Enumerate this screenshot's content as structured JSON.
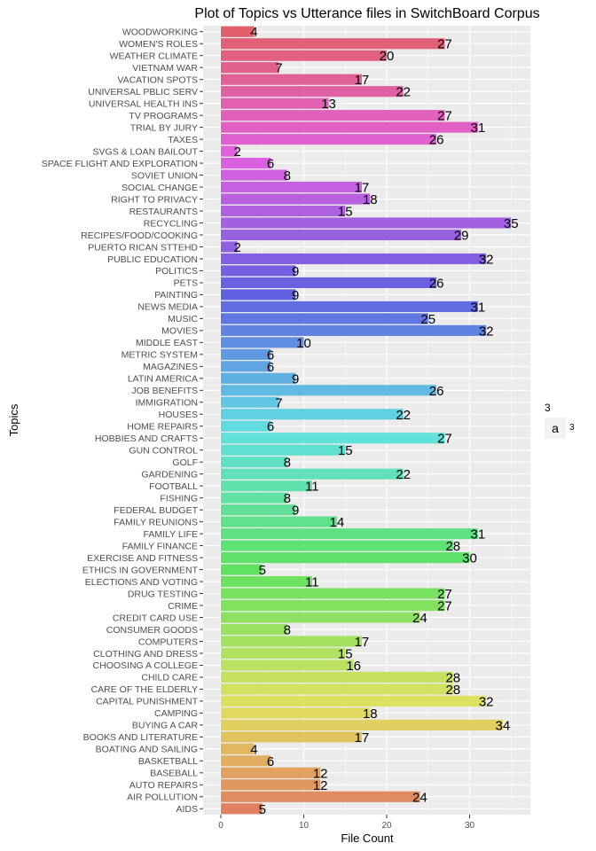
{
  "chart_data": {
    "type": "bar",
    "orientation": "horizontal",
    "title": "Plot of Topics vs Utterance files in SwitchBoard Corpus",
    "xlabel": "File Count",
    "ylabel": "Topics",
    "xlim": [
      0,
      37
    ],
    "xticks": [
      "0",
      "10",
      "20",
      "30"
    ],
    "grid": true,
    "legend": {
      "title": "3",
      "key_text": "a",
      "label": "3",
      "position": "right"
    },
    "categories": [
      "WOODWORKING",
      "WOMEN'S ROLES",
      "WEATHER CLIMATE",
      "VIETNAM WAR",
      "VACATION SPOTS",
      "UNIVERSAL PBLIC SERV",
      "UNIVERSAL HEALTH INS",
      "TV PROGRAMS",
      "TRIAL BY JURY",
      "TAXES",
      "SVGS & LOAN BAILOUT",
      "SPACE FLIGHT AND EXPLORATION",
      "SOVIET UNION",
      "SOCIAL CHANGE",
      "RIGHT TO PRIVACY",
      "RESTAURANTS",
      "RECYCLING",
      "RECIPES/FOOD/COOKING",
      "PUERTO RICAN STTEHD",
      "PUBLIC EDUCATION",
      "POLITICS",
      "PETS",
      "PAINTING",
      "NEWS MEDIA",
      "MUSIC",
      "MOVIES",
      "MIDDLE EAST",
      "METRIC SYSTEM",
      "MAGAZINES",
      "LATIN AMERICA",
      "JOB BENEFITS",
      "IMMIGRATION",
      "HOUSES",
      "HOME REPAIRS",
      "HOBBIES AND CRAFTS",
      "GUN CONTROL",
      "GOLF",
      "GARDENING",
      "FOOTBALL",
      "FISHING",
      "FEDERAL BUDGET",
      "FAMILY REUNIONS",
      "FAMILY LIFE",
      "FAMILY FINANCE",
      "EXERCISE AND FITNESS",
      "ETHICS IN GOVERNMENT",
      "ELECTIONS AND VOTING",
      "DRUG TESTING",
      "CRIME",
      "CREDIT CARD USE",
      "CONSUMER GOODS",
      "COMPUTERS",
      "CLOTHING AND DRESS",
      "CHOOSING A COLLEGE",
      "CHILD CARE",
      "CARE OF THE ELDERLY",
      "CAPITAL PUNISHMENT",
      "CAMPING",
      "BUYING A CAR",
      "BOOKS AND LITERATURE",
      "BOATING AND SAILING",
      "BASKETBALL",
      "BASEBALL",
      "AUTO REPAIRS",
      "AIR POLLUTION",
      "AIDS"
    ],
    "values": [
      4,
      27,
      20,
      7,
      17,
      22,
      13,
      27,
      31,
      26,
      2,
      6,
      8,
      17,
      18,
      15,
      35,
      29,
      2,
      32,
      9,
      26,
      9,
      31,
      25,
      32,
      10,
      6,
      6,
      9,
      26,
      7,
      22,
      6,
      27,
      15,
      8,
      22,
      11,
      8,
      9,
      14,
      31,
      28,
      30,
      5,
      11,
      27,
      27,
      24,
      8,
      17,
      15,
      16,
      28,
      28,
      32,
      18,
      34,
      17,
      4,
      6,
      12,
      12,
      24,
      5
    ],
    "data_labels": [
      "4",
      "27",
      "20",
      "7",
      "17",
      "22",
      "13",
      "27",
      "31",
      "26",
      "2",
      "6",
      "8",
      "17",
      "18",
      "15",
      "35",
      "29",
      "2",
      "32",
      "9",
      "26",
      "9",
      "31",
      "25",
      "32",
      "10",
      "6",
      "6",
      "9",
      "26",
      "7",
      "22",
      "6",
      "27",
      "15",
      "8",
      "22",
      "11",
      "8",
      "9",
      "14",
      "31",
      "28",
      "30",
      "5",
      "11",
      "27",
      "27",
      "24",
      "8",
      "17",
      "15",
      "16",
      "28",
      "28",
      "32",
      "18",
      "34",
      "17",
      "4",
      "6",
      "12",
      "12",
      "24",
      "5"
    ]
  }
}
